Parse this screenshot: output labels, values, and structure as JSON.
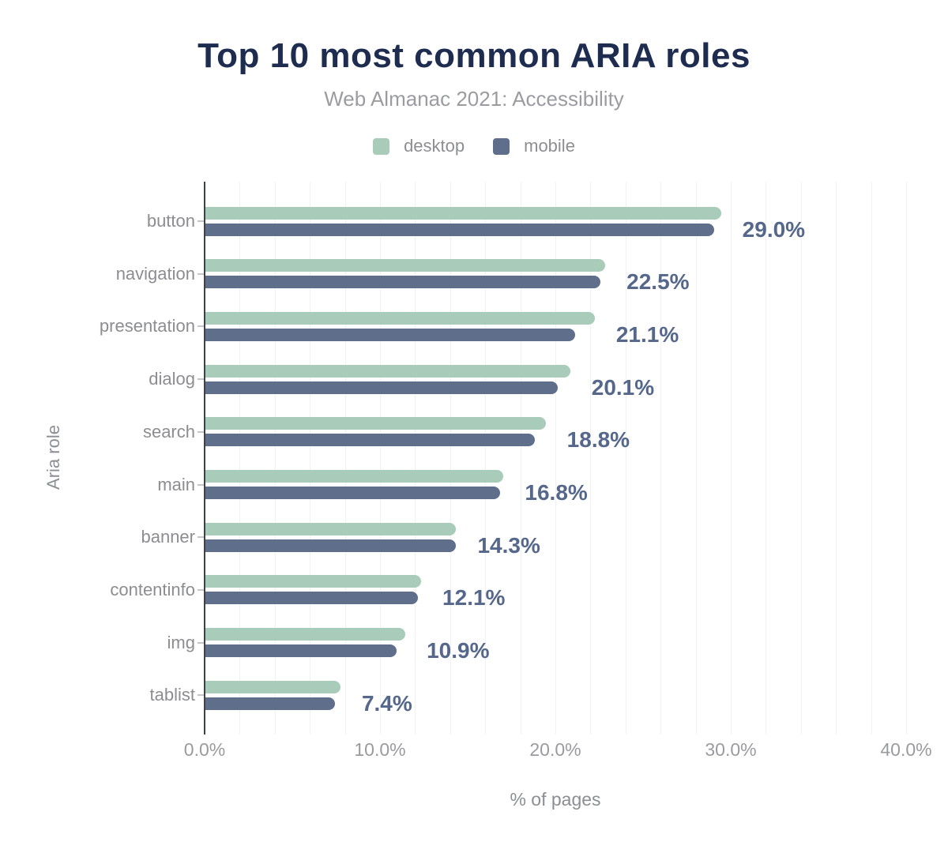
{
  "chart": {
    "title": "Top 10 most common ARIA roles",
    "subtitle": "Web Almanac 2021: Accessibility",
    "x_axis_label": "% of pages",
    "y_axis_label": "Aria role"
  },
  "chart_data": {
    "type": "bar",
    "orientation": "horizontal",
    "title": "Top 10 most common ARIA roles",
    "subtitle": "Web Almanac 2021: Accessibility",
    "xlabel": "% of pages",
    "ylabel": "Aria role",
    "xlim": [
      0,
      40
    ],
    "grid_interval_percent": 2,
    "legend_position": "top",
    "x_ticks": [
      {
        "label": "0.0%",
        "value": 0
      },
      {
        "label": "10.0%",
        "value": 10
      },
      {
        "label": "20.0%",
        "value": 20
      },
      {
        "label": "30.0%",
        "value": 30
      },
      {
        "label": "40.0%",
        "value": 40
      }
    ],
    "categories": [
      "button",
      "navigation",
      "presentation",
      "dialog",
      "search",
      "main",
      "banner",
      "contentinfo",
      "img",
      "tablist"
    ],
    "series": [
      {
        "name": "desktop",
        "color": "#a9cbba",
        "values": [
          29.4,
          22.8,
          22.2,
          20.8,
          19.4,
          17.0,
          14.3,
          12.3,
          11.4,
          7.7
        ]
      },
      {
        "name": "mobile",
        "color": "#5f6e8b",
        "values": [
          29.0,
          22.5,
          21.1,
          20.1,
          18.8,
          16.8,
          14.3,
          12.1,
          10.9,
          7.4
        ]
      }
    ],
    "value_labels": [
      "29.0%",
      "22.5%",
      "21.1%",
      "20.1%",
      "18.8%",
      "16.8%",
      "14.3%",
      "12.1%",
      "10.9%",
      "7.4%"
    ],
    "colors": {
      "title": "#1e2c50",
      "subtitle": "#9a9ca0",
      "desktop_bar": "#a9cbba",
      "mobile_bar": "#5f6e8b",
      "value_label": "#55678a",
      "axis_text": "#999b9f",
      "gridline": "#f2f2f4",
      "axis_line": "#3d4045"
    }
  }
}
